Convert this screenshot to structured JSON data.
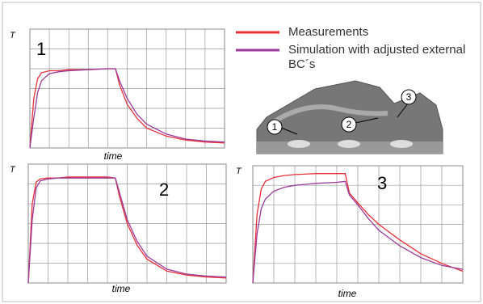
{
  "chart_data": [
    {
      "type": "line",
      "title": "1",
      "xlabel": "time",
      "ylabel": "T",
      "xlim": [
        0,
        10
      ],
      "ylim": [
        0,
        6
      ],
      "grid": true,
      "x": [
        0,
        0.2,
        0.4,
        0.6,
        1,
        1.5,
        2,
        3,
        4,
        4.4,
        4.6,
        5,
        5.5,
        6,
        7,
        8,
        9,
        10
      ],
      "series": [
        {
          "name": "Measurements",
          "color": "#e8303a",
          "values": [
            0,
            2.5,
            3.5,
            3.8,
            3.9,
            3.9,
            3.95,
            3.95,
            4.0,
            4.0,
            3.2,
            2.2,
            1.5,
            1.0,
            0.6,
            0.4,
            0.3,
            0.25
          ]
        },
        {
          "name": "Simulation with adjusted external BC´s",
          "color": "#9a3a9a",
          "values": [
            0,
            1.5,
            2.8,
            3.4,
            3.75,
            3.85,
            3.9,
            3.95,
            4.0,
            4.0,
            3.4,
            2.5,
            1.7,
            1.2,
            0.7,
            0.45,
            0.35,
            0.3
          ]
        }
      ]
    },
    {
      "type": "line",
      "title": "2",
      "xlabel": "time",
      "ylabel": "T",
      "xlim": [
        0,
        10
      ],
      "ylim": [
        0,
        6
      ],
      "grid": true,
      "x": [
        0,
        0.2,
        0.4,
        0.6,
        1,
        1.5,
        2,
        3,
        4,
        4.4,
        4.6,
        5,
        5.5,
        6,
        7,
        8,
        9,
        10
      ],
      "series": [
        {
          "name": "Measurements",
          "color": "#e8303a",
          "values": [
            0,
            4.0,
            5.1,
            5.25,
            5.3,
            5.3,
            5.35,
            5.35,
            5.35,
            5.3,
            4.4,
            3.0,
            1.9,
            1.2,
            0.6,
            0.4,
            0.3,
            0.25
          ]
        },
        {
          "name": "Simulation with adjusted external BC´s",
          "color": "#9a3a9a",
          "values": [
            0,
            3.2,
            4.8,
            5.15,
            5.25,
            5.3,
            5.3,
            5.3,
            5.3,
            5.3,
            4.6,
            3.2,
            2.1,
            1.35,
            0.7,
            0.45,
            0.35,
            0.3
          ]
        }
      ]
    },
    {
      "type": "line",
      "title": "3",
      "xlabel": "time",
      "ylabel": "T",
      "xlim": [
        0,
        10
      ],
      "ylim": [
        0,
        6
      ],
      "grid": true,
      "x": [
        0,
        0.2,
        0.4,
        0.6,
        1,
        1.5,
        2,
        3,
        4,
        4.4,
        4.6,
        5,
        5.5,
        6,
        7,
        8,
        9,
        10
      ],
      "series": [
        {
          "name": "Measurements",
          "color": "#e8303a",
          "values": [
            0,
            3.5,
            4.8,
            5.2,
            5.4,
            5.5,
            5.55,
            5.6,
            5.6,
            5.6,
            4.6,
            4.1,
            3.5,
            3.0,
            2.2,
            1.5,
            1.0,
            0.6
          ]
        },
        {
          "name": "Simulation with adjusted external BC´s",
          "color": "#9a3a9a",
          "values": [
            0,
            2.5,
            3.8,
            4.3,
            4.7,
            4.9,
            5.0,
            5.1,
            5.15,
            5.2,
            4.5,
            4.0,
            3.3,
            2.7,
            1.9,
            1.3,
            0.9,
            0.7
          ]
        }
      ]
    }
  ],
  "diagram": {
    "callouts": [
      "1",
      "2",
      "3"
    ]
  }
}
